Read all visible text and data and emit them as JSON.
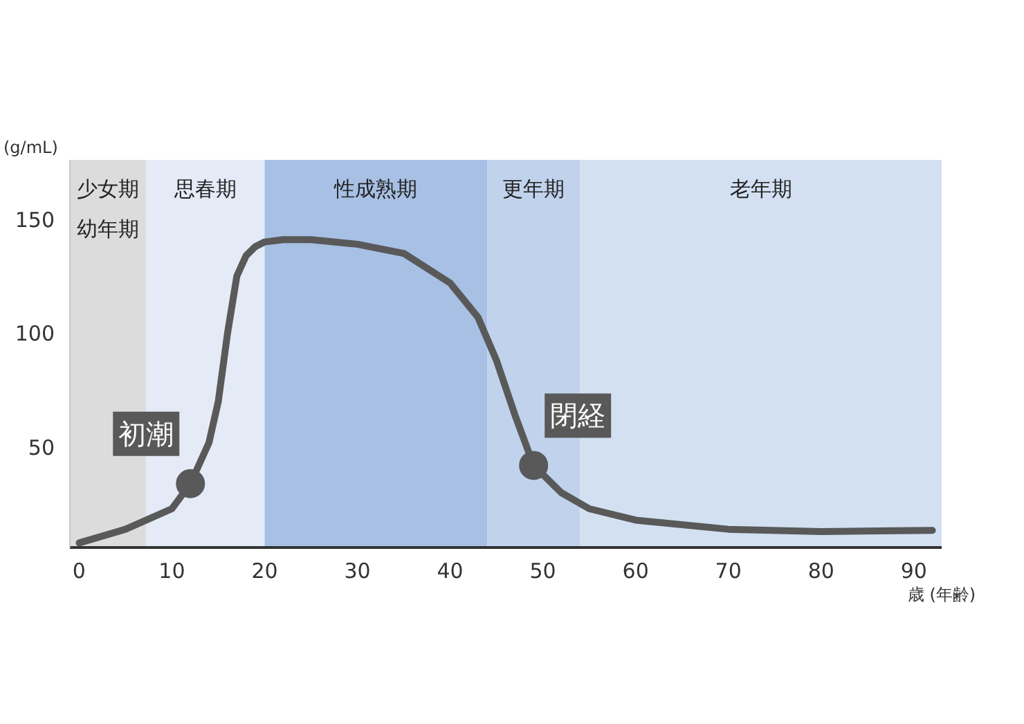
{
  "chart_data": {
    "type": "line",
    "ylabel": "(g/mL)",
    "xlabel": "歳 (年齢)",
    "x": [
      0,
      5,
      10,
      12,
      14,
      15,
      16,
      17,
      18,
      19,
      20,
      22,
      25,
      30,
      35,
      40,
      43,
      45,
      47,
      49,
      52,
      55,
      60,
      70,
      80,
      92
    ],
    "series": [
      {
        "color": "#595959",
        "values": [
          8,
          14,
          23,
          34,
          52,
          70,
          100,
          125,
          134,
          138,
          140,
          141,
          141,
          139,
          135,
          122,
          107,
          88,
          64,
          42,
          30,
          23,
          18,
          14,
          13,
          13.5
        ]
      }
    ],
    "xlim": [
      -1,
      93
    ],
    "ylim": [
      6,
      176
    ],
    "xticks": [
      0,
      10,
      20,
      30,
      40,
      50,
      60,
      70,
      80,
      90
    ],
    "yticks": [
      50,
      100,
      150
    ],
    "bands": [
      {
        "axis": "x",
        "from": -1,
        "to": 7.2,
        "label": "少女期幼年期",
        "color": "#dcdcdc"
      },
      {
        "axis": "x",
        "from": 7.2,
        "to": 20,
        "label": "思春期",
        "color": "#e4ebf7"
      },
      {
        "axis": "x",
        "from": 20,
        "to": 44,
        "label": "性成熟期",
        "color": "#a7c0e4"
      },
      {
        "axis": "x",
        "from": 44,
        "to": 54,
        "label": "更年期",
        "color": "#c0d2ec"
      },
      {
        "axis": "x",
        "from": 54,
        "to": 93,
        "label": "老年期",
        "color": "#d3e0f2"
      }
    ],
    "annotations": [
      {
        "text": "初潮",
        "x": 12,
        "y": 34
      },
      {
        "text": "閉経",
        "x": 49,
        "y": 42
      }
    ],
    "grid": false,
    "marker": "none",
    "line_style": "solid"
  }
}
